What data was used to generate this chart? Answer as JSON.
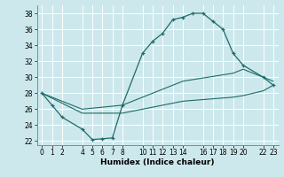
{
  "xlabel": "Humidex (Indice chaleur)",
  "bg_color": "#cde8ec",
  "grid_color": "#ffffff",
  "line_color": "#1e6b6b",
  "xlim": [
    -0.5,
    23.5
  ],
  "ylim": [
    21.5,
    39.0
  ],
  "xticks": [
    0,
    1,
    2,
    4,
    5,
    6,
    7,
    8,
    10,
    11,
    12,
    13,
    14,
    16,
    17,
    18,
    19,
    20,
    22,
    23
  ],
  "yticks": [
    22,
    24,
    26,
    28,
    30,
    32,
    34,
    36,
    38
  ],
  "curve_main_x": [
    0,
    1,
    2,
    4,
    5,
    6,
    7,
    8,
    10,
    11,
    12,
    13,
    14,
    15,
    16,
    17,
    18,
    19,
    20,
    22,
    23
  ],
  "curve_main_y": [
    28,
    26.5,
    25,
    23.5,
    22.2,
    22.3,
    22.4,
    26.5,
    33.0,
    34.5,
    35.5,
    37.2,
    37.5,
    38.0,
    38.0,
    37.0,
    36.0,
    33.0,
    31.5,
    30.0,
    29.0
  ],
  "curve_low_x": [
    0,
    4,
    8,
    14,
    19,
    20,
    22,
    23
  ],
  "curve_low_y": [
    28.0,
    25.5,
    25.5,
    27.0,
    27.5,
    27.7,
    28.3,
    29.0
  ],
  "curve_mid_x": [
    0,
    4,
    8,
    14,
    19,
    20,
    22,
    23
  ],
  "curve_mid_y": [
    28.0,
    26.0,
    26.5,
    29.5,
    30.5,
    31.0,
    30.0,
    29.5
  ]
}
